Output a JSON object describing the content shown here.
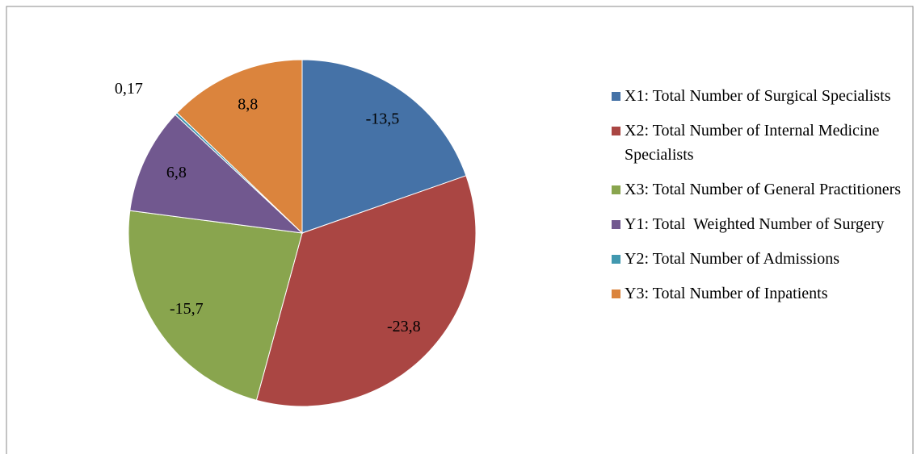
{
  "chart_data": {
    "type": "pie",
    "categories": [
      "X1: Total Number of Surgical Specialists",
      "X2: Total Number of Internal Medicine Specialists",
      "X3: Total Number of General Practitioners",
      "Y1: Total  Weighted Number of Surgery",
      "Y2: Total Number of Admissions",
      "Y3: Total Number of Inpatients"
    ],
    "values": [
      -13.5,
      -23.8,
      -15.7,
      6.8,
      0.17,
      8.8
    ],
    "value_labels": [
      "-13,5",
      "-23,8",
      "-15,7",
      "6,8",
      "0,17",
      "8,8"
    ],
    "colors": [
      "#4572a7",
      "#aa4643",
      "#89a54e",
      "#71588f",
      "#4198af",
      "#db843d"
    ],
    "legend": "right"
  }
}
